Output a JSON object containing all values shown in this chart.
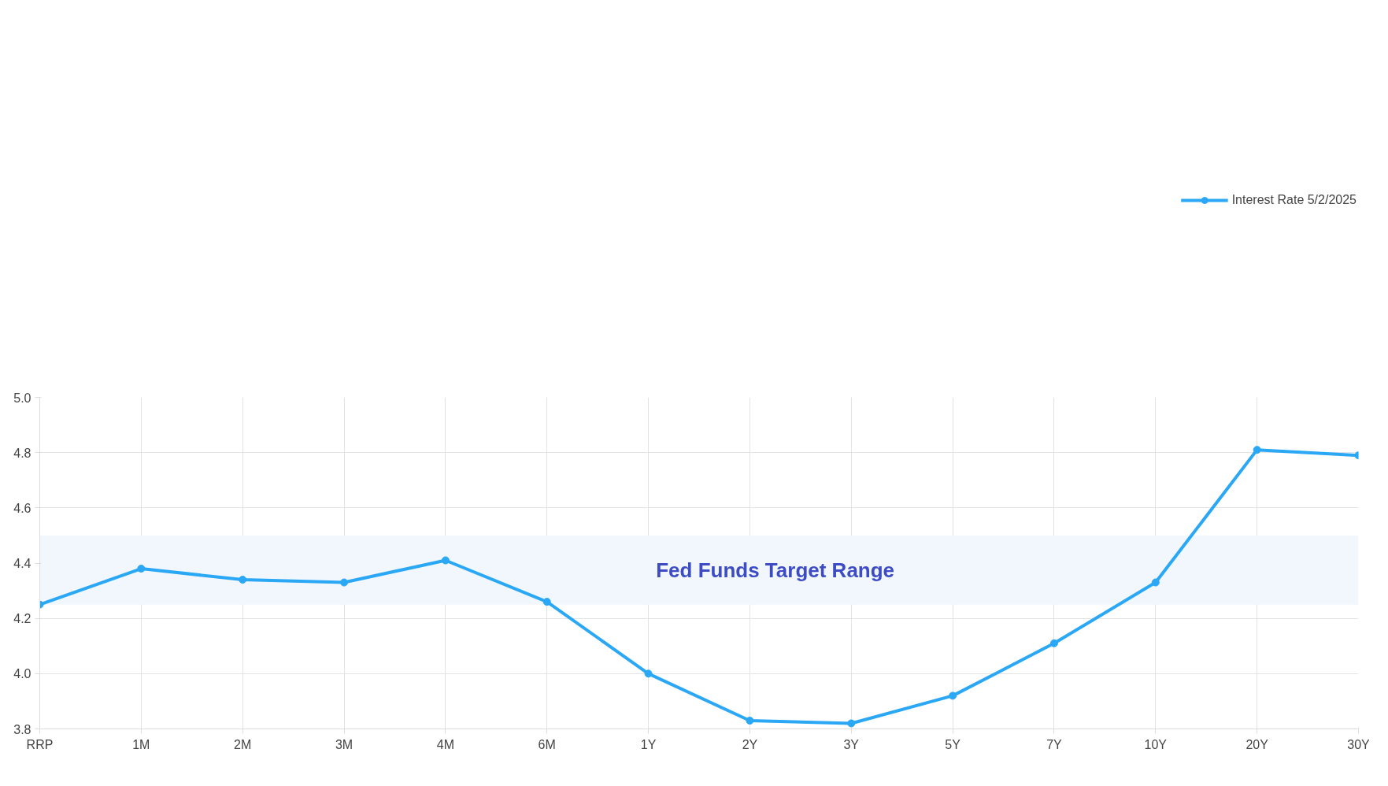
{
  "chart_data": {
    "type": "line",
    "categories": [
      "RRP",
      "1M",
      "2M",
      "3M",
      "4M",
      "6M",
      "1Y",
      "2Y",
      "3Y",
      "5Y",
      "7Y",
      "10Y",
      "20Y",
      "30Y"
    ],
    "series": [
      {
        "name": "Interest Rate 5/2/2025",
        "color": "#2aa7f5",
        "values": [
          4.25,
          4.38,
          4.34,
          4.33,
          4.41,
          4.26,
          4.0,
          3.83,
          3.82,
          3.92,
          4.11,
          4.33,
          4.81,
          4.79
        ]
      }
    ],
    "ylim": [
      3.8,
      5.0
    ],
    "yticks": [
      {
        "value": 3.8,
        "label": "3.8"
      },
      {
        "value": 4.0,
        "label": "4.0"
      },
      {
        "value": 4.2,
        "label": "4.2"
      },
      {
        "value": 4.4,
        "label": "4.4"
      },
      {
        "value": 4.6,
        "label": "4.6"
      },
      {
        "value": 4.8,
        "label": "4.8"
      },
      {
        "value": 5.0,
        "label": "5.0"
      }
    ],
    "bands": [
      {
        "axis": "y",
        "from": 4.25,
        "to": 4.5,
        "label": "Fed Funds Target Range",
        "color": "#f1f7fd"
      }
    ],
    "grid": true,
    "legend": "top",
    "marker": "circle",
    "line_style": "solid"
  }
}
